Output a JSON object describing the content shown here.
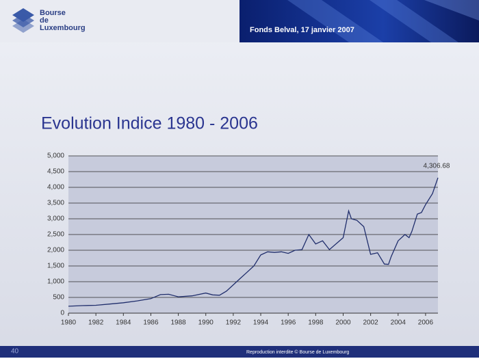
{
  "header": {
    "logo_lines": [
      "Bourse",
      "de",
      "Luxembourg"
    ],
    "event": "Fonds Belval, 17 janvier 2007"
  },
  "chart_data": {
    "type": "line",
    "title": "Evolution Indice 1980 - 2006",
    "x": [
      1980,
      1981,
      1982,
      1983,
      1984,
      1985,
      1986,
      1986.7,
      1987.3,
      1988,
      1989,
      1990,
      1990.5,
      1991,
      1991.5,
      1992,
      1992.5,
      1993,
      1993.5,
      1994,
      1994.5,
      1995,
      1995.5,
      1996,
      1996.5,
      1997,
      1997.5,
      1998,
      1998.5,
      1999,
      2000,
      2000.4,
      2000.6,
      2001,
      2001.5,
      2002,
      2002.5,
      2003,
      2003.3,
      2003.5,
      2004,
      2004.5,
      2004.8,
      2005,
      2005.4,
      2005.7,
      2006,
      2006.5,
      2006.9
    ],
    "values": [
      220,
      240,
      250,
      290,
      330,
      390,
      460,
      590,
      600,
      520,
      550,
      640,
      580,
      570,
      700,
      900,
      1100,
      1300,
      1500,
      1850,
      1950,
      1930,
      1950,
      1900,
      2000,
      2020,
      2500,
      2200,
      2300,
      2020,
      2400,
      3250,
      3000,
      2950,
      2750,
      1870,
      1920,
      1560,
      1550,
      1800,
      2300,
      2500,
      2400,
      2600,
      3150,
      3200,
      3450,
      3800,
      4306.68
    ],
    "color": "#1f2d6b",
    "annotation": "4,306.68",
    "xlim": [
      1980,
      2006.9
    ],
    "ylim": [
      0,
      5000
    ],
    "xticks": [
      1980,
      1982,
      1984,
      1986,
      1988,
      1990,
      1992,
      1994,
      1996,
      1998,
      2000,
      2002,
      2004,
      2006
    ],
    "yticks": [
      0,
      500,
      {
        "value": 1000,
        "label": "1,000"
      },
      {
        "value": 1500,
        "label": "1,500"
      },
      {
        "value": 2000,
        "label": "2,000"
      },
      {
        "value": 2500,
        "label": "2,500"
      },
      {
        "value": 3000,
        "label": "3,000"
      },
      {
        "value": 3500,
        "label": "3,500"
      },
      {
        "value": 4000,
        "label": "4,000"
      },
      {
        "value": 4500,
        "label": "4,500"
      },
      {
        "value": 5000,
        "label": "5,000"
      }
    ],
    "grid": true
  },
  "footer": {
    "page": "40",
    "notice": "Reproduction interdite © Bourse de Luxembourg"
  }
}
